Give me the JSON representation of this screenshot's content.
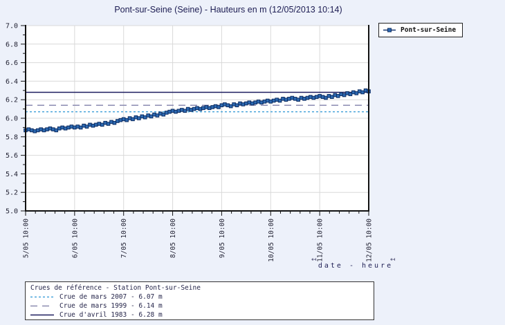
{
  "title": "Pont-sur-Seine (Seine) - Hauteurs en m (12/05/2013 10:14)",
  "series_legend": {
    "label": "Pont-sur-Seine"
  },
  "axis_title": {
    "text": "date - heure",
    "arrow_left": "↤",
    "arrow_right": "↤"
  },
  "ref_legend": {
    "title": "Crues de référence - Station Pont-sur-Seine",
    "entries": [
      {
        "label": "Crue de mars 2007 - 6.07 m",
        "value": 6.07,
        "style": "dotted",
        "color": "#45a3d9"
      },
      {
        "label": "Crue de mars 1999 - 6.14 m",
        "value": 6.14,
        "style": "dashed",
        "color": "#8a8ab0"
      },
      {
        "label": "Crue d'avril 1983 - 6.28 m",
        "value": 6.28,
        "style": "solid",
        "color": "#1b1b5e"
      }
    ]
  },
  "colors": {
    "page_bg": "#edf1fa",
    "plot_bg": "#ffffff",
    "grid": "#d9d9d9",
    "axis": "#111111",
    "tick_text": "#222233",
    "series_line": "#16356e",
    "marker_fill": "#2d6ab2",
    "marker_stroke": "#0c2c62"
  },
  "chart_data": {
    "type": "line",
    "title": "Pont-sur-Seine (Seine) - Hauteurs en m (12/05/2013 10:14)",
    "xlabel": "date - heure",
    "ylabel": "Hauteurs en m",
    "ylim": [
      5.0,
      7.0
    ],
    "y_tick_step": 0.2,
    "y_minor_step": 0.1,
    "x_span_days": 7,
    "x_minor_step_days": 0.2,
    "x_tick_labels": [
      "5/05 10:00",
      "6/05 10:00",
      "7/05 10:00",
      "8/05 10:00",
      "9/05 10:00",
      "10/05 10:00",
      "11/05 10:00",
      "12/05 10:00"
    ],
    "grid": true,
    "legend_position": "top-right",
    "reference_lines": [
      {
        "name": "Crue de mars 2007",
        "value": 6.07,
        "style": "dotted",
        "color": "#45a3d9"
      },
      {
        "name": "Crue de mars 1999",
        "value": 6.14,
        "style": "dashed",
        "color": "#8a8ab0"
      },
      {
        "name": "Crue d'avril 1983",
        "value": 6.28,
        "style": "solid",
        "color": "#1b1b5e"
      }
    ],
    "series": [
      {
        "name": "Pont-sur-Seine",
        "marker": "square",
        "x_start_label": "5/05 10:00",
        "x_interval_hours": 1.5,
        "values": [
          5.87,
          5.88,
          5.87,
          5.86,
          5.87,
          5.88,
          5.87,
          5.88,
          5.89,
          5.88,
          5.87,
          5.89,
          5.9,
          5.89,
          5.9,
          5.91,
          5.9,
          5.91,
          5.9,
          5.92,
          5.91,
          5.93,
          5.92,
          5.93,
          5.94,
          5.93,
          5.95,
          5.94,
          5.96,
          5.95,
          5.97,
          5.98,
          5.99,
          5.98,
          6.0,
          5.99,
          6.01,
          6.0,
          6.02,
          6.01,
          6.03,
          6.02,
          6.04,
          6.03,
          6.05,
          6.04,
          6.06,
          6.07,
          6.08,
          6.07,
          6.08,
          6.09,
          6.08,
          6.1,
          6.09,
          6.1,
          6.11,
          6.1,
          6.11,
          6.12,
          6.11,
          6.12,
          6.13,
          6.12,
          6.14,
          6.15,
          6.14,
          6.13,
          6.15,
          6.14,
          6.16,
          6.15,
          6.16,
          6.17,
          6.16,
          6.17,
          6.18,
          6.17,
          6.18,
          6.19,
          6.18,
          6.19,
          6.2,
          6.19,
          6.21,
          6.2,
          6.21,
          6.22,
          6.21,
          6.2,
          6.22,
          6.21,
          6.22,
          6.23,
          6.22,
          6.23,
          6.24,
          6.23,
          6.22,
          6.24,
          6.23,
          6.25,
          6.24,
          6.26,
          6.25,
          6.27,
          6.26,
          6.28,
          6.27,
          6.29,
          6.28,
          6.3,
          6.29
        ]
      }
    ]
  }
}
